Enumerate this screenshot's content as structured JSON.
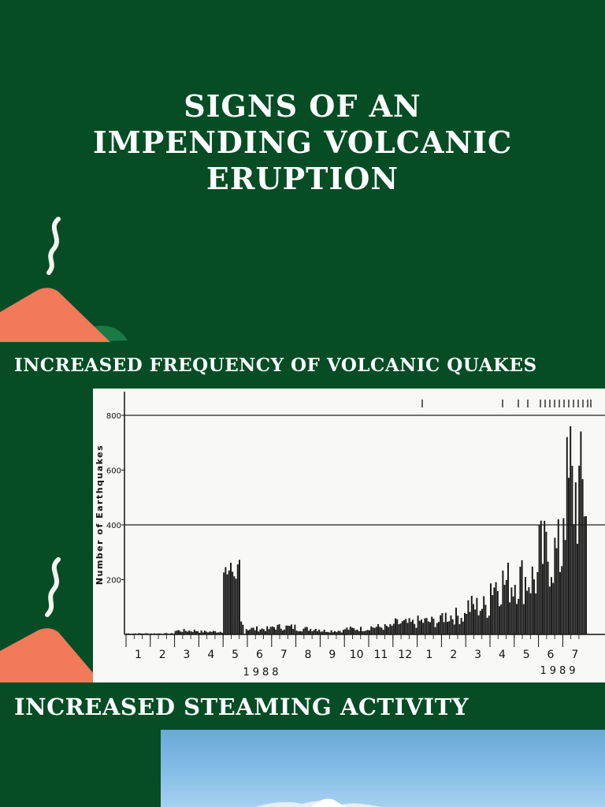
{
  "title": {
    "line1": "SIGNS OF AN",
    "line2": "IMPENDING VOLCANIC",
    "line3": "ERUPTION"
  },
  "sections": [
    {
      "heading": "INCREASED FREQUENCY OF VOLCANIC QUAKES"
    },
    {
      "heading": "INCREASED STEAMING ACTIVITY"
    }
  ],
  "colors": {
    "background": "#064d25",
    "volcano": "#f2795a",
    "hill": "#1a7a45",
    "smoke": "#f4f4f0"
  },
  "icons": [
    "volcano-icon",
    "smoke-icon"
  ],
  "chart_data": {
    "type": "bar",
    "ylabel": "Number of Earthquakes",
    "yticks": [
      200,
      400,
      600,
      800
    ],
    "ylim": [
      0,
      900
    ],
    "reference_lines": [
      400,
      800
    ],
    "month_ticks": [
      "1",
      "2",
      "3",
      "4",
      "5",
      "6",
      "7",
      "8",
      "9",
      "10",
      "11",
      "12",
      "1",
      "2",
      "3",
      "4",
      "5",
      "6",
      "7"
    ],
    "years": [
      "1988",
      "1989"
    ],
    "months_approx_peak": [
      {
        "month": "1988-01",
        "value": 5
      },
      {
        "month": "1988-02",
        "value": 5
      },
      {
        "month": "1988-03",
        "value": 20
      },
      {
        "month": "1988-04",
        "value": 15
      },
      {
        "month": "1988-05",
        "value": 275
      },
      {
        "month": "1988-06",
        "value": 30
      },
      {
        "month": "1988-07",
        "value": 40
      },
      {
        "month": "1988-08",
        "value": 30
      },
      {
        "month": "1988-09",
        "value": 20
      },
      {
        "month": "1988-10",
        "value": 30
      },
      {
        "month": "1988-11",
        "value": 40
      },
      {
        "month": "1988-12",
        "value": 60
      },
      {
        "month": "1989-01",
        "value": 70
      },
      {
        "month": "1989-02",
        "value": 100
      },
      {
        "month": "1989-03",
        "value": 150
      },
      {
        "month": "1989-04",
        "value": 280
      },
      {
        "month": "1989-05",
        "value": 300
      },
      {
        "month": "1989-06",
        "value": 430
      },
      {
        "month": "1989-07",
        "value": 760
      }
    ]
  }
}
